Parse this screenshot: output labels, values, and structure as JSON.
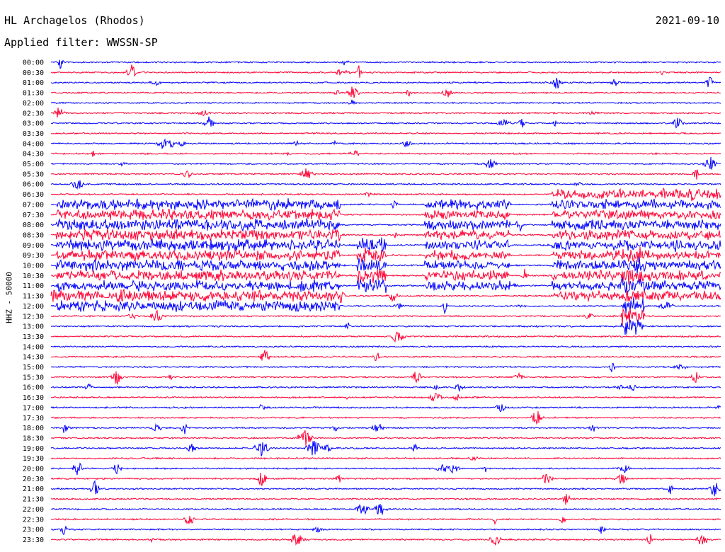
{
  "header": {
    "station": "HL Archagelos (Rhodos)",
    "date": "2021-09-10",
    "filter": "Applied filter: WWSSN-SP"
  },
  "chart_data": {
    "type": "line",
    "title": "HL Archagelos (Rhodos)",
    "subtitle": "Applied filter: WWSSN-SP",
    "ylabel": "HHZ - 50000",
    "xlabel": "",
    "date": "2021-09-10",
    "row_labels": [
      "00:00",
      "00:30",
      "01:00",
      "01:30",
      "02:00",
      "02:30",
      "03:00",
      "03:30",
      "04:00",
      "04:30",
      "05:00",
      "05:30",
      "06:00",
      "06:30",
      "07:00",
      "07:30",
      "08:00",
      "08:30",
      "09:00",
      "09:30",
      "10:00",
      "10:30",
      "11:00",
      "11:30",
      "12:00",
      "12:30",
      "13:00",
      "13:30",
      "14:00",
      "14:30",
      "15:00",
      "15:30",
      "16:00",
      "16:30",
      "17:00",
      "17:30",
      "18:00",
      "18:30",
      "19:00",
      "19:30",
      "20:00",
      "20:30",
      "21:00",
      "21:30",
      "22:00",
      "22:30",
      "23:00",
      "23:30"
    ],
    "trace_colors": [
      "#0000ff",
      "#ff0033"
    ],
    "grid": false,
    "legend": "none"
  }
}
